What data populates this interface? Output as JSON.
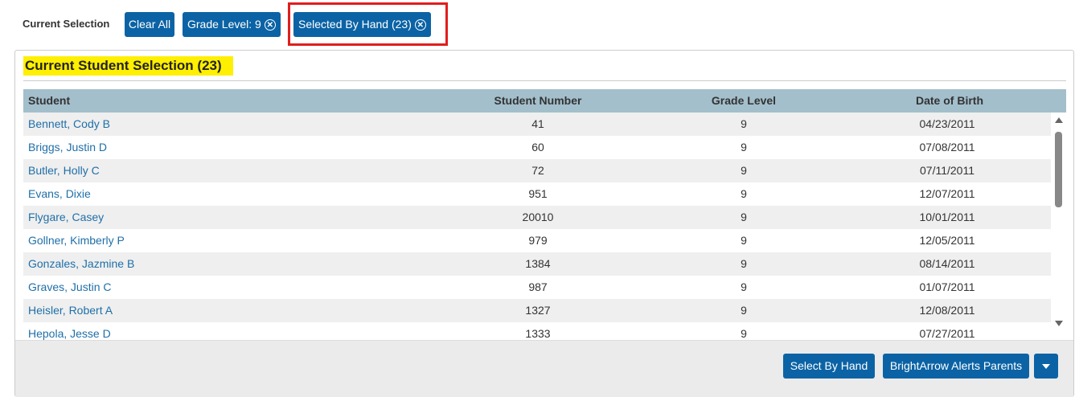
{
  "selection_bar": {
    "label": "Current Selection",
    "clear_all": "Clear All",
    "filters": [
      "Grade Level: 9",
      "Selected By Hand (23)"
    ]
  },
  "panel": {
    "title": "Current Student Selection (23)"
  },
  "table": {
    "columns": [
      "Student",
      "Student Number",
      "Grade Level",
      "Date of Birth"
    ],
    "rows": [
      [
        "Bennett, Cody B",
        "41",
        "9",
        "04/23/2011"
      ],
      [
        "Briggs, Justin D",
        "60",
        "9",
        "07/08/2011"
      ],
      [
        "Butler, Holly C",
        "72",
        "9",
        "07/11/2011"
      ],
      [
        "Evans, Dixie",
        "951",
        "9",
        "12/07/2011"
      ],
      [
        "Flygare, Casey",
        "20010",
        "9",
        "10/01/2011"
      ],
      [
        "Gollner, Kimberly P",
        "979",
        "9",
        "12/05/2011"
      ],
      [
        "Gonzales, Jazmine B",
        "1384",
        "9",
        "08/14/2011"
      ],
      [
        "Graves, Justin C",
        "987",
        "9",
        "01/07/2011"
      ],
      [
        "Heisler, Robert A",
        "1327",
        "9",
        "12/08/2011"
      ],
      [
        "Hepola, Jesse D",
        "1333",
        "9",
        "07/27/2011"
      ]
    ]
  },
  "footer": {
    "buttons": [
      "Select By Hand",
      "BrightArrow Alerts Parents"
    ]
  }
}
